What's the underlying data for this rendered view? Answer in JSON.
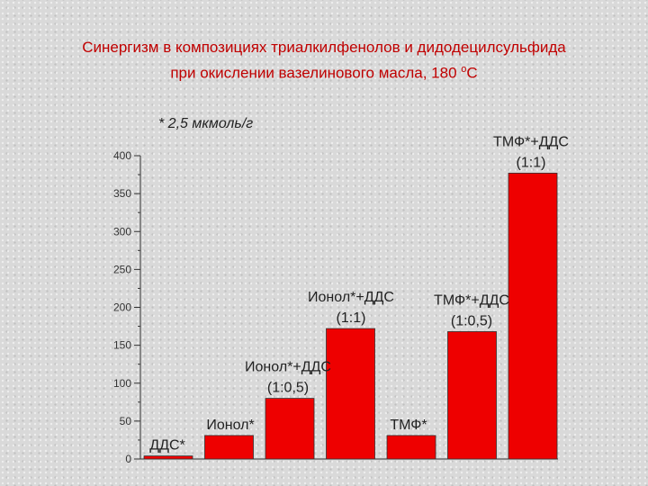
{
  "header": {
    "title_line1": "Синергизм в композициях триалкилфенолов и дидодецилсульфида",
    "title_line2_prefix": "при окислении вазелинового масла, 180 ",
    "title_sup": "о",
    "title_line2_suffix": "С"
  },
  "chart_data": {
    "type": "bar",
    "title": "Синергизм в композициях триалкилфенолов и дидодецилсульфида при окислении вазелинового масла, 180 оС",
    "annotation": "* 2,5 мкмоль/г",
    "ylim": [
      0,
      400
    ],
    "yticks": [
      0,
      50,
      100,
      150,
      200,
      250,
      300,
      350,
      400
    ],
    "ytick_labels": [
      "0",
      "50",
      "100",
      "150",
      "200",
      "250",
      "300",
      "350",
      "400"
    ],
    "grid": false,
    "bar_color": "#ee0000",
    "categories": [
      [
        "ДДС*"
      ],
      [
        "Ионол*"
      ],
      [
        "Ионол*+ДДС",
        "(1:0,5)"
      ],
      [
        "Ионол*+ДДС",
        "(1:1)"
      ],
      [
        "ТМФ*"
      ],
      [
        "ТМФ*+ДДС",
        "(1:0,5)"
      ],
      [
        "ТМФ*+ДДС",
        "(1:1)"
      ]
    ],
    "values": [
      4,
      31,
      80,
      172,
      31,
      168,
      377
    ]
  }
}
